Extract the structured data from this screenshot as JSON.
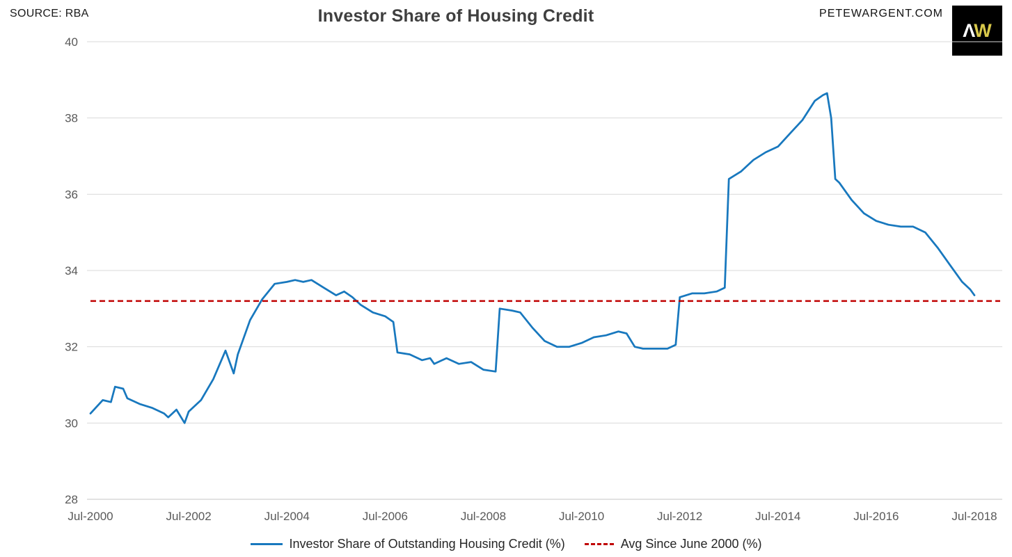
{
  "header": {
    "source": "SOURCE: RBA",
    "title": "Investor Share of Housing Credit",
    "site": "PETEWARGENT.COM",
    "logo_a": "Λ",
    "logo_w": "W"
  },
  "colors": {
    "line_blue": "#1878be",
    "avg_red": "#c00000",
    "grid": "#d9d9d9",
    "axis_bottom": "#c6c6c6",
    "tick_text": "#595959",
    "title_text": "#3f3f3f",
    "legend_text": "#262626",
    "logo_bg": "#000000",
    "logo_w_color": "#d8c84a"
  },
  "chart_data": {
    "type": "line",
    "title": "Investor Share of Housing Credit",
    "source": "SOURCE: RBA",
    "xlabel": "",
    "ylabel": "",
    "ylim": [
      28,
      40
    ],
    "y_ticks": [
      28,
      30,
      32,
      34,
      36,
      38,
      40
    ],
    "x_ticks": [
      "Jul-2000",
      "Jul-2002",
      "Jul-2004",
      "Jul-2006",
      "Jul-2008",
      "Jul-2010",
      "Jul-2012",
      "Jul-2014",
      "Jul-2016",
      "Jul-2018"
    ],
    "grid": "horizontal",
    "legend_position": "bottom-center",
    "series": [
      {
        "name": "Investor Share of Outstanding Housing Credit (%)",
        "type": "line",
        "style": "solid",
        "color": "#1878be",
        "points": [
          [
            "Jul-2000",
            30.25
          ],
          [
            "Oct-2000",
            30.6
          ],
          [
            "Dec-2000",
            30.55
          ],
          [
            "Jan-2001",
            30.95
          ],
          [
            "Mar-2001",
            30.9
          ],
          [
            "Apr-2001",
            30.65
          ],
          [
            "Jul-2001",
            30.5
          ],
          [
            "Oct-2001",
            30.4
          ],
          [
            "Jan-2002",
            30.25
          ],
          [
            "Feb-2002",
            30.15
          ],
          [
            "Apr-2002",
            30.35
          ],
          [
            "Jun-2002",
            30.0
          ],
          [
            "Jul-2002",
            30.3
          ],
          [
            "Oct-2002",
            30.6
          ],
          [
            "Jan-2003",
            31.15
          ],
          [
            "Apr-2003",
            31.9
          ],
          [
            "Jun-2003",
            31.3
          ],
          [
            "Jul-2003",
            31.8
          ],
          [
            "Oct-2003",
            32.7
          ],
          [
            "Jan-2004",
            33.25
          ],
          [
            "Apr-2004",
            33.65
          ],
          [
            "Jul-2004",
            33.7
          ],
          [
            "Sep-2004",
            33.75
          ],
          [
            "Nov-2004",
            33.7
          ],
          [
            "Jan-2005",
            33.75
          ],
          [
            "Apr-2005",
            33.55
          ],
          [
            "Jul-2005",
            33.35
          ],
          [
            "Sep-2005",
            33.45
          ],
          [
            "Nov-2005",
            33.3
          ],
          [
            "Jan-2006",
            33.1
          ],
          [
            "Apr-2006",
            32.9
          ],
          [
            "Jul-2006",
            32.8
          ],
          [
            "Sep-2006",
            32.65
          ],
          [
            "Oct-2006",
            31.85
          ],
          [
            "Jan-2007",
            31.8
          ],
          [
            "Apr-2007",
            31.65
          ],
          [
            "Jun-2007",
            31.7
          ],
          [
            "Jul-2007",
            31.55
          ],
          [
            "Oct-2007",
            31.7
          ],
          [
            "Jan-2008",
            31.55
          ],
          [
            "Apr-2008",
            31.6
          ],
          [
            "Jul-2008",
            31.4
          ],
          [
            "Oct-2008",
            31.35
          ],
          [
            "Nov-2008",
            33.0
          ],
          [
            "Feb-2009",
            32.95
          ],
          [
            "Apr-2009",
            32.9
          ],
          [
            "Jul-2009",
            32.5
          ],
          [
            "Oct-2009",
            32.15
          ],
          [
            "Jan-2010",
            32.0
          ],
          [
            "Apr-2010",
            32.0
          ],
          [
            "Jul-2010",
            32.1
          ],
          [
            "Oct-2010",
            32.25
          ],
          [
            "Jan-2011",
            32.3
          ],
          [
            "Apr-2011",
            32.4
          ],
          [
            "Jun-2011",
            32.35
          ],
          [
            "Aug-2011",
            32.0
          ],
          [
            "Oct-2011",
            31.95
          ],
          [
            "Jan-2012",
            31.95
          ],
          [
            "Apr-2012",
            31.95
          ],
          [
            "Jun-2012",
            32.05
          ],
          [
            "Jul-2012",
            33.3
          ],
          [
            "Oct-2012",
            33.4
          ],
          [
            "Jan-2013",
            33.4
          ],
          [
            "Apr-2013",
            33.45
          ],
          [
            "Jun-2013",
            33.55
          ],
          [
            "Jul-2013",
            36.4
          ],
          [
            "Oct-2013",
            36.6
          ],
          [
            "Jan-2014",
            36.9
          ],
          [
            "Apr-2014",
            37.1
          ],
          [
            "Jul-2014",
            37.25
          ],
          [
            "Oct-2014",
            37.6
          ],
          [
            "Jan-2015",
            37.95
          ],
          [
            "Apr-2015",
            38.45
          ],
          [
            "Jun-2015",
            38.6
          ],
          [
            "Jul-2015",
            38.65
          ],
          [
            "Aug-2015",
            38.0
          ],
          [
            "Sep-2015",
            36.4
          ],
          [
            "Oct-2015",
            36.3
          ],
          [
            "Jan-2016",
            35.85
          ],
          [
            "Apr-2016",
            35.5
          ],
          [
            "Jul-2016",
            35.3
          ],
          [
            "Oct-2016",
            35.2
          ],
          [
            "Jan-2017",
            35.15
          ],
          [
            "Apr-2017",
            35.15
          ],
          [
            "Jul-2017",
            35.0
          ],
          [
            "Oct-2017",
            34.6
          ],
          [
            "Jan-2018",
            34.15
          ],
          [
            "Apr-2018",
            33.7
          ],
          [
            "Jun-2018",
            33.5
          ],
          [
            "Jul-2018",
            33.35
          ]
        ]
      },
      {
        "name": "Avg Since June 2000 (%)",
        "type": "hline",
        "style": "dashed",
        "color": "#c00000",
        "value": 33.2
      }
    ]
  }
}
